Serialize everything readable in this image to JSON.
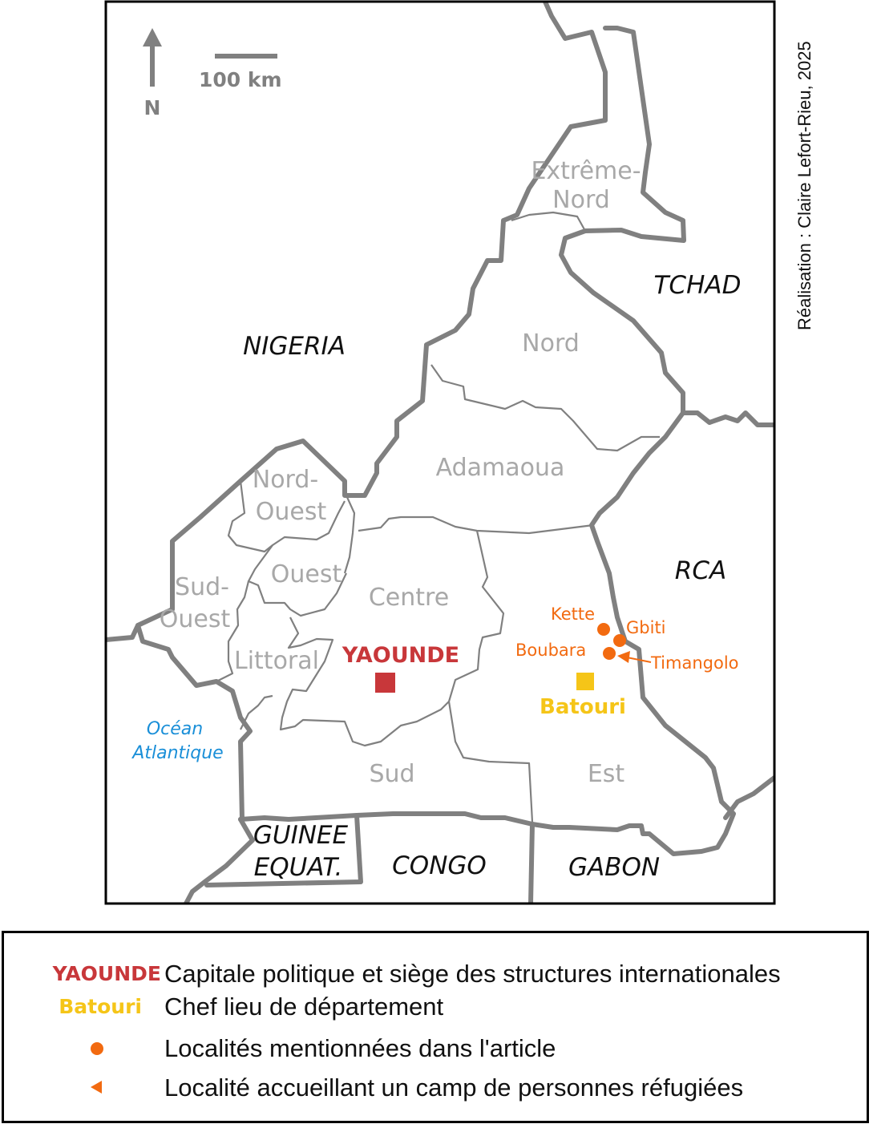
{
  "map": {
    "north_label": "N",
    "scale_label": "100 km",
    "credit": "Réalisation : Claire Lefort-Rieu, 2025",
    "countries": {
      "tchad": "TCHAD",
      "nigeria": "NIGERIA",
      "rca": "RCA",
      "guinee_line1": "GUINEE",
      "guinee_line2": "EQUAT.",
      "congo": "CONGO",
      "gabon": "GABON"
    },
    "ocean_line1": "Océan",
    "ocean_line2": "Atlantique",
    "regions": {
      "extreme_nord_line1": "Extrême-",
      "extreme_nord_line2": "Nord",
      "nord": "Nord",
      "adamaoua": "Adamaoua",
      "nord_ouest_line1": "Nord-",
      "nord_ouest_line2": "Ouest",
      "ouest": "Ouest",
      "sud_ouest_line1": "Sud-",
      "sud_ouest_line2": "Ouest",
      "littoral": "Littoral",
      "centre": "Centre",
      "sud": "Sud",
      "est": "Est"
    },
    "capital": "YAOUNDE",
    "department_seat": "Batouri",
    "localities": {
      "kette": "Kette",
      "gbiti": "Gbiti",
      "boubara": "Boubara",
      "timangolo": "Timangolo"
    },
    "colors": {
      "capital": "#c8373a",
      "department_seat": "#f5c518",
      "locality": "#f26a10",
      "border": "#808080",
      "ocean_text": "#1a8fd8"
    }
  },
  "legend": {
    "capital_key": "YAOUNDE",
    "capital_text": "Capitale politique et siège des structures internationales",
    "dept_key": "Batouri",
    "dept_text": "Chef lieu de département",
    "locality_text": "Localités mentionnées dans l'article",
    "refugee_text": "Localité accueillant un camp de personnes réfugiées"
  }
}
